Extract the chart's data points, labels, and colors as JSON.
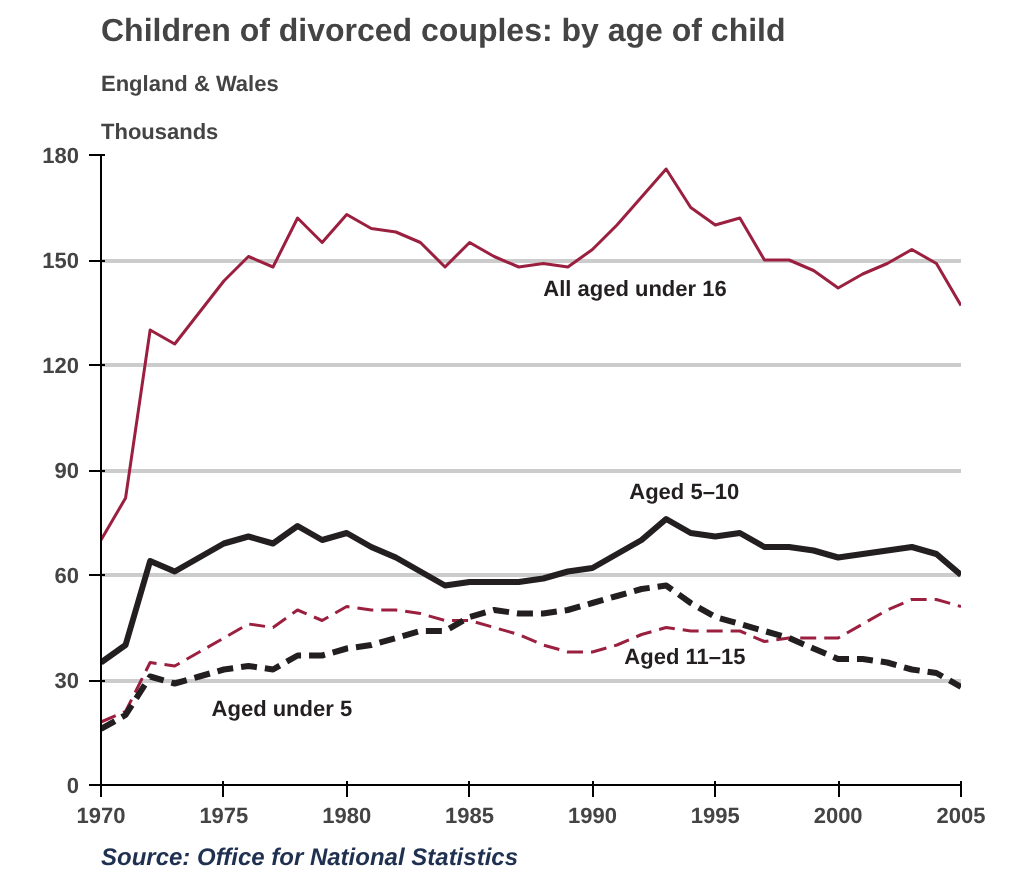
{
  "chart_data": {
    "type": "line",
    "title": "Children of divorced couples: by age of child",
    "subtitle": "England & Wales",
    "ylabel": "Thousands",
    "x": [
      1970,
      1971,
      1972,
      1973,
      1974,
      1975,
      1976,
      1977,
      1978,
      1979,
      1980,
      1981,
      1982,
      1983,
      1984,
      1985,
      1986,
      1987,
      1988,
      1989,
      1990,
      1991,
      1992,
      1993,
      1994,
      1995,
      1996,
      1997,
      1998,
      1999,
      2000,
      2001,
      2002,
      2003,
      2004,
      2005
    ],
    "series": [
      {
        "name": "All aged under 16",
        "color": "#9b2040",
        "line_style": "solid",
        "values": [
          70,
          82,
          130,
          126,
          135,
          144,
          151,
          148,
          162,
          155,
          163,
          159,
          158,
          155,
          148,
          155,
          151,
          148,
          149,
          148,
          153,
          160,
          168,
          176,
          165,
          160,
          162,
          150,
          150,
          147,
          142,
          146,
          149,
          153,
          149,
          137
        ]
      },
      {
        "name": "Aged 5–10",
        "color": "#231f20",
        "line_style": "solid",
        "values": [
          35,
          40,
          64,
          61,
          65,
          69,
          71,
          69,
          74,
          70,
          72,
          68,
          65,
          61,
          57,
          58,
          58,
          58,
          59,
          61,
          62,
          66,
          70,
          76,
          72,
          71,
          72,
          68,
          68,
          67,
          65,
          66,
          67,
          68,
          66,
          60
        ]
      },
      {
        "name": "Aged 11–15",
        "color": "#9b2040",
        "line_style": "dashed",
        "values": [
          18,
          21,
          35,
          34,
          38,
          42,
          46,
          45,
          50,
          47,
          51,
          50,
          50,
          49,
          47,
          47,
          45,
          43,
          40,
          38,
          38,
          40,
          43,
          45,
          44,
          44,
          44,
          41,
          42,
          42,
          42,
          46,
          50,
          53,
          53,
          51
        ]
      },
      {
        "name": "Aged under 5",
        "color": "#231f20",
        "line_style": "dashed",
        "values": [
          16,
          20,
          31,
          29,
          31,
          33,
          34,
          33,
          37,
          37,
          39,
          40,
          42,
          44,
          44,
          48,
          50,
          49,
          49,
          50,
          52,
          54,
          56,
          57,
          52,
          48,
          46,
          44,
          42,
          39,
          36,
          36,
          35,
          33,
          32,
          28
        ]
      }
    ],
    "xlim": [
      1970,
      2005
    ],
    "xticks": [
      1970,
      1975,
      1980,
      1985,
      1990,
      1995,
      2000,
      2005
    ],
    "ylim": [
      0,
      180
    ],
    "yticks": [
      0,
      30,
      60,
      90,
      120,
      150,
      180
    ],
    "grid": "y",
    "legend": false,
    "annotations": [
      "Source: Office for National Statistics"
    ]
  }
}
